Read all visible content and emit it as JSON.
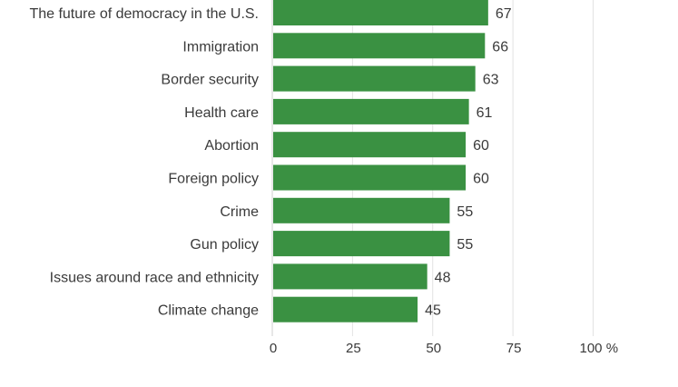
{
  "chart_data": {
    "type": "bar",
    "orientation": "horizontal",
    "categories": [
      "The future of democracy in the U.S.",
      "Immigration",
      "Border security",
      "Health care",
      "Abortion",
      "Foreign policy",
      "Crime",
      "Gun policy",
      "Issues around race and ethnicity",
      "Climate change"
    ],
    "values": [
      67,
      66,
      63,
      61,
      60,
      60,
      55,
      55,
      48,
      45
    ],
    "value_labels": [
      "67",
      "66",
      "63",
      "61",
      "60",
      "60",
      "55",
      "55",
      "48",
      "45"
    ],
    "xlim": [
      0,
      100
    ],
    "x_ticks": [
      0,
      25,
      50,
      75,
      100
    ],
    "x_tick_labels": [
      "0",
      "25",
      "50",
      "75",
      "100 %"
    ],
    "grid": true,
    "colors": {
      "bar": "#3a9142",
      "grid": "#e2e2e2",
      "text": "#3a3a3a"
    }
  }
}
